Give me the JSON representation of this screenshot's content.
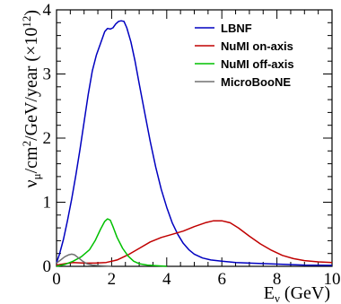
{
  "chart_data": {
    "type": "line",
    "xlabel": "E_ν (GeV)",
    "ylabel": "ν_μ/cm²/GeV/year (×10¹²)",
    "xlabel_parts": {
      "main": "E",
      "sub": "ν",
      "rest": " (GeV)"
    },
    "ylabel_parts": {
      "p1": "ν",
      "sub": "μ",
      "p2": "/cm",
      "sup": "2",
      "p3": "/GeV/year (×10",
      "sup2": "12",
      "p4": ")"
    },
    "xlim": [
      0,
      10
    ],
    "ylim": [
      0,
      4
    ],
    "x_ticks": [
      0,
      2,
      4,
      6,
      8,
      10
    ],
    "y_ticks": [
      0,
      1,
      2,
      3,
      4
    ],
    "legend_position": "top-right",
    "series": [
      {
        "name": "LBNF",
        "color": "#0000c0",
        "points": [
          [
            0.0,
            0.06
          ],
          [
            0.1,
            0.18
          ],
          [
            0.25,
            0.42
          ],
          [
            0.4,
            0.72
          ],
          [
            0.55,
            1.05
          ],
          [
            0.7,
            1.42
          ],
          [
            0.85,
            1.82
          ],
          [
            1.0,
            2.25
          ],
          [
            1.15,
            2.68
          ],
          [
            1.3,
            3.05
          ],
          [
            1.45,
            3.3
          ],
          [
            1.6,
            3.48
          ],
          [
            1.75,
            3.66
          ],
          [
            1.85,
            3.71
          ],
          [
            1.95,
            3.7
          ],
          [
            2.05,
            3.72
          ],
          [
            2.15,
            3.78
          ],
          [
            2.25,
            3.82
          ],
          [
            2.35,
            3.83
          ],
          [
            2.45,
            3.82
          ],
          [
            2.55,
            3.72
          ],
          [
            2.7,
            3.5
          ],
          [
            2.85,
            3.2
          ],
          [
            3.0,
            2.85
          ],
          [
            3.2,
            2.4
          ],
          [
            3.4,
            1.95
          ],
          [
            3.6,
            1.55
          ],
          [
            3.8,
            1.2
          ],
          [
            4.0,
            0.92
          ],
          [
            4.2,
            0.68
          ],
          [
            4.4,
            0.5
          ],
          [
            4.6,
            0.36
          ],
          [
            4.8,
            0.26
          ],
          [
            5.0,
            0.19
          ],
          [
            5.3,
            0.13
          ],
          [
            5.6,
            0.1
          ],
          [
            6.0,
            0.08
          ],
          [
            6.5,
            0.06
          ],
          [
            7.0,
            0.05
          ],
          [
            8.0,
            0.035
          ],
          [
            9.0,
            0.02
          ],
          [
            10.0,
            0.015
          ]
        ]
      },
      {
        "name": "NuMI on-axis",
        "color": "#c00000",
        "points": [
          [
            0.0,
            0.02
          ],
          [
            0.3,
            0.04
          ],
          [
            0.6,
            0.06
          ],
          [
            1.0,
            0.05
          ],
          [
            1.4,
            0.05
          ],
          [
            1.8,
            0.06
          ],
          [
            2.2,
            0.1
          ],
          [
            2.6,
            0.18
          ],
          [
            3.0,
            0.28
          ],
          [
            3.4,
            0.38
          ],
          [
            3.8,
            0.45
          ],
          [
            4.2,
            0.5
          ],
          [
            4.6,
            0.55
          ],
          [
            5.0,
            0.62
          ],
          [
            5.4,
            0.68
          ],
          [
            5.7,
            0.71
          ],
          [
            6.0,
            0.71
          ],
          [
            6.3,
            0.68
          ],
          [
            6.6,
            0.6
          ],
          [
            7.0,
            0.47
          ],
          [
            7.4,
            0.35
          ],
          [
            7.8,
            0.25
          ],
          [
            8.2,
            0.17
          ],
          [
            8.6,
            0.12
          ],
          [
            9.0,
            0.09
          ],
          [
            9.5,
            0.07
          ],
          [
            10.0,
            0.06
          ]
        ]
      },
      {
        "name": "NuMI off-axis",
        "color": "#00c000",
        "points": [
          [
            0.0,
            0.0
          ],
          [
            0.3,
            0.03
          ],
          [
            0.6,
            0.08
          ],
          [
            0.9,
            0.15
          ],
          [
            1.2,
            0.26
          ],
          [
            1.4,
            0.4
          ],
          [
            1.6,
            0.58
          ],
          [
            1.75,
            0.7
          ],
          [
            1.85,
            0.74
          ],
          [
            1.95,
            0.72
          ],
          [
            2.05,
            0.62
          ],
          [
            2.2,
            0.45
          ],
          [
            2.4,
            0.28
          ],
          [
            2.6,
            0.16
          ],
          [
            2.8,
            0.08
          ],
          [
            3.0,
            0.04
          ],
          [
            3.3,
            0.02
          ],
          [
            3.6,
            0.01
          ],
          [
            4.0,
            0.0
          ]
        ]
      },
      {
        "name": "MicroBooNE",
        "color": "#707070",
        "points": [
          [
            0.0,
            0.05
          ],
          [
            0.15,
            0.1
          ],
          [
            0.3,
            0.15
          ],
          [
            0.45,
            0.18
          ],
          [
            0.55,
            0.19
          ],
          [
            0.65,
            0.18
          ],
          [
            0.8,
            0.13
          ],
          [
            0.95,
            0.08
          ],
          [
            1.1,
            0.04
          ],
          [
            1.3,
            0.02
          ],
          [
            1.6,
            0.01
          ],
          [
            2.0,
            0.0
          ]
        ]
      }
    ]
  }
}
